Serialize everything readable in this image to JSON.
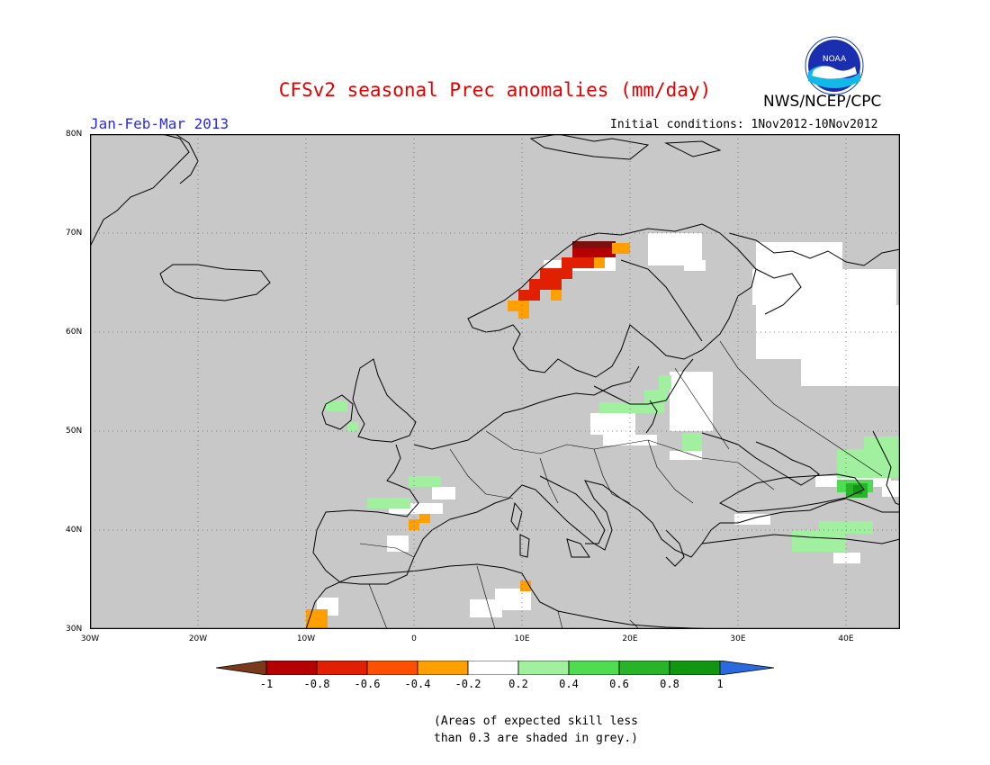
{
  "header": {
    "title": "CFSv2 seasonal Prec anomalies (mm/day)",
    "organization": "NWS/NCEP/CPC",
    "logo_text": "NOAA",
    "period": "Jan-Feb-Mar 2013",
    "initial_conditions": "Initial conditions: 1Nov2012-10Nov2012"
  },
  "map": {
    "region": "Europe",
    "lon_range": [
      -30,
      45
    ],
    "lat_range": [
      30,
      80
    ],
    "background_color": "#c8c8c8",
    "grid": "dotted",
    "lat_labels": [
      "80N",
      "70N",
      "60N",
      "50N",
      "40N",
      "30N"
    ],
    "lon_labels": [
      "30W",
      "20W",
      "10W",
      "0",
      "10E",
      "20E",
      "30E",
      "40E"
    ]
  },
  "legend": {
    "labels": [
      "-1",
      "-0.8",
      "-0.6",
      "-0.4",
      "-0.2",
      "0.2",
      "0.4",
      "0.6",
      "0.8",
      "1"
    ],
    "colors": [
      "#7a3a1a",
      "#b40000",
      "#e02000",
      "#ff5000",
      "#ffa000",
      "#ffffff",
      "#a0f0a0",
      "#50dc50",
      "#28b428",
      "#109610",
      "#2a6ae0"
    ]
  },
  "note": {
    "line1": "(Areas of expected skill less",
    "line2": "than 0.3 are shaded in grey.)"
  }
}
